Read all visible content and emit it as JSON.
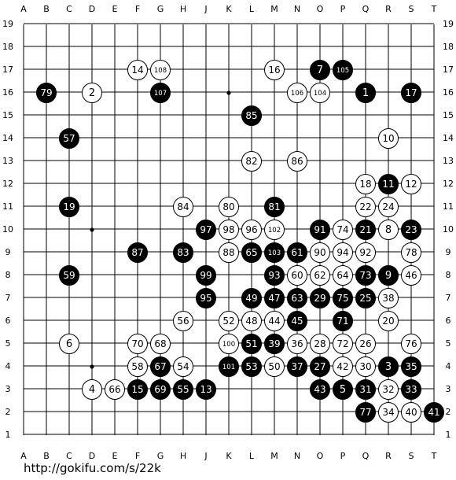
{
  "board": {
    "size": 19,
    "col_labels": [
      "A",
      "B",
      "C",
      "D",
      "E",
      "F",
      "G",
      "H",
      "J",
      "K",
      "L",
      "M",
      "N",
      "O",
      "P",
      "Q",
      "R",
      "S",
      "T"
    ],
    "row_labels": [
      "19",
      "18",
      "17",
      "16",
      "15",
      "14",
      "13",
      "12",
      "11",
      "10",
      "9",
      "8",
      "7",
      "6",
      "5",
      "4",
      "3",
      "2",
      "1"
    ],
    "hoshi": [
      "D4",
      "K4",
      "Q4",
      "D10",
      "K10",
      "Q10",
      "D16",
      "K16",
      "Q16"
    ],
    "url": "http://gokifu.com/s/22k",
    "stones": [
      {
        "pos": "Q16",
        "color": "black",
        "num": "1"
      },
      {
        "pos": "D16",
        "color": "white",
        "num": "2"
      },
      {
        "pos": "R4",
        "color": "black",
        "num": "3"
      },
      {
        "pos": "D3",
        "color": "white",
        "num": "4"
      },
      {
        "pos": "P3",
        "color": "black",
        "num": "5"
      },
      {
        "pos": "C5",
        "color": "white",
        "num": "6"
      },
      {
        "pos": "O17",
        "color": "black",
        "num": "7"
      },
      {
        "pos": "R10",
        "color": "white",
        "num": "8"
      },
      {
        "pos": "R8",
        "color": "black",
        "num": "9"
      },
      {
        "pos": "R14",
        "color": "white",
        "num": "10"
      },
      {
        "pos": "R12",
        "color": "black",
        "num": "11"
      },
      {
        "pos": "S12",
        "color": "white",
        "num": "12"
      },
      {
        "pos": "J3",
        "color": "black",
        "num": "13"
      },
      {
        "pos": "F17",
        "color": "white",
        "num": "14"
      },
      {
        "pos": "F3",
        "color": "black",
        "num": "15"
      },
      {
        "pos": "M17",
        "color": "white",
        "num": "16"
      },
      {
        "pos": "S16",
        "color": "black",
        "num": "17"
      },
      {
        "pos": "Q12",
        "color": "white",
        "num": "18"
      },
      {
        "pos": "C11",
        "color": "black",
        "num": "19"
      },
      {
        "pos": "R6",
        "color": "white",
        "num": "20"
      },
      {
        "pos": "Q10",
        "color": "black",
        "num": "21"
      },
      {
        "pos": "Q11",
        "color": "white",
        "num": "22"
      },
      {
        "pos": "S10",
        "color": "black",
        "num": "23"
      },
      {
        "pos": "R11",
        "color": "white",
        "num": "24"
      },
      {
        "pos": "Q7",
        "color": "black",
        "num": "25"
      },
      {
        "pos": "Q5",
        "color": "white",
        "num": "26"
      },
      {
        "pos": "O4",
        "color": "black",
        "num": "27"
      },
      {
        "pos": "O5",
        "color": "white",
        "num": "28"
      },
      {
        "pos": "O7",
        "color": "black",
        "num": "29"
      },
      {
        "pos": "Q4",
        "color": "white",
        "num": "30"
      },
      {
        "pos": "Q3",
        "color": "black",
        "num": "31"
      },
      {
        "pos": "R3",
        "color": "white",
        "num": "32"
      },
      {
        "pos": "S3",
        "color": "black",
        "num": "33"
      },
      {
        "pos": "R2",
        "color": "white",
        "num": "34"
      },
      {
        "pos": "S4",
        "color": "black",
        "num": "35"
      },
      {
        "pos": "N5",
        "color": "white",
        "num": "36"
      },
      {
        "pos": "N4",
        "color": "black",
        "num": "37"
      },
      {
        "pos": "R7",
        "color": "white",
        "num": "38"
      },
      {
        "pos": "M5",
        "color": "black",
        "num": "39"
      },
      {
        "pos": "S2",
        "color": "white",
        "num": "40"
      },
      {
        "pos": "T2",
        "color": "black",
        "num": "41"
      },
      {
        "pos": "P4",
        "color": "white",
        "num": "42"
      },
      {
        "pos": "O3",
        "color": "black",
        "num": "43"
      },
      {
        "pos": "M6",
        "color": "white",
        "num": "44"
      },
      {
        "pos": "N6",
        "color": "black",
        "num": "45"
      },
      {
        "pos": "S8",
        "color": "white",
        "num": "46"
      },
      {
        "pos": "M7",
        "color": "black",
        "num": "47"
      },
      {
        "pos": "L6",
        "color": "white",
        "num": "48"
      },
      {
        "pos": "L7",
        "color": "black",
        "num": "49"
      },
      {
        "pos": "M4",
        "color": "white",
        "num": "50"
      },
      {
        "pos": "L5",
        "color": "black",
        "num": "51"
      },
      {
        "pos": "K6",
        "color": "white",
        "num": "52"
      },
      {
        "pos": "L4",
        "color": "black",
        "num": "53"
      },
      {
        "pos": "H4",
        "color": "white",
        "num": "54"
      },
      {
        "pos": "H3",
        "color": "black",
        "num": "55"
      },
      {
        "pos": "H6",
        "color": "white",
        "num": "56"
      },
      {
        "pos": "C14",
        "color": "black",
        "num": "57"
      },
      {
        "pos": "F4",
        "color": "white",
        "num": "58"
      },
      {
        "pos": "C8",
        "color": "black",
        "num": "59"
      },
      {
        "pos": "N8",
        "color": "white",
        "num": "60"
      },
      {
        "pos": "N9",
        "color": "black",
        "num": "61"
      },
      {
        "pos": "O8",
        "color": "white",
        "num": "62"
      },
      {
        "pos": "N7",
        "color": "black",
        "num": "63"
      },
      {
        "pos": "P8",
        "color": "white",
        "num": "64"
      },
      {
        "pos": "L9",
        "color": "black",
        "num": "65"
      },
      {
        "pos": "E3",
        "color": "white",
        "num": "66"
      },
      {
        "pos": "G4",
        "color": "black",
        "num": "67"
      },
      {
        "pos": "G5",
        "color": "white",
        "num": "68"
      },
      {
        "pos": "G3",
        "color": "black",
        "num": "69"
      },
      {
        "pos": "F5",
        "color": "white",
        "num": "70"
      },
      {
        "pos": "P6",
        "color": "black",
        "num": "71"
      },
      {
        "pos": "P5",
        "color": "white",
        "num": "72"
      },
      {
        "pos": "Q8",
        "color": "black",
        "num": "73"
      },
      {
        "pos": "P10",
        "color": "white",
        "num": "74"
      },
      {
        "pos": "P7",
        "color": "black",
        "num": "75"
      },
      {
        "pos": "S5",
        "color": "white",
        "num": "76"
      },
      {
        "pos": "Q2",
        "color": "black",
        "num": "77"
      },
      {
        "pos": "S9",
        "color": "white",
        "num": "78"
      },
      {
        "pos": "B16",
        "color": "black",
        "num": "79"
      },
      {
        "pos": "K11",
        "color": "white",
        "num": "80"
      },
      {
        "pos": "M11",
        "color": "black",
        "num": "81"
      },
      {
        "pos": "L13",
        "color": "white",
        "num": "82"
      },
      {
        "pos": "H9",
        "color": "black",
        "num": "83"
      },
      {
        "pos": "H11",
        "color": "white",
        "num": "84"
      },
      {
        "pos": "L15",
        "color": "black",
        "num": "85"
      },
      {
        "pos": "N13",
        "color": "white",
        "num": "86"
      },
      {
        "pos": "F9",
        "color": "black",
        "num": "87"
      },
      {
        "pos": "K9",
        "color": "white",
        "num": "88"
      },
      {
        "pos": "O10",
        "color": "black",
        "num": "91"
      },
      {
        "pos": "O9",
        "color": "white",
        "num": "90"
      },
      {
        "pos": "Q9",
        "color": "white",
        "num": "92"
      },
      {
        "pos": "M8",
        "color": "black",
        "num": "93"
      },
      {
        "pos": "P9",
        "color": "white",
        "num": "94"
      },
      {
        "pos": "J7",
        "color": "black",
        "num": "95"
      },
      {
        "pos": "L10",
        "color": "white",
        "num": "96"
      },
      {
        "pos": "J10",
        "color": "black",
        "num": "97"
      },
      {
        "pos": "K10",
        "color": "white",
        "num": "98"
      },
      {
        "pos": "J8",
        "color": "black",
        "num": "99"
      },
      {
        "pos": "K5",
        "color": "white",
        "num": "100"
      },
      {
        "pos": "K4",
        "color": "black",
        "num": "101"
      },
      {
        "pos": "M10",
        "color": "white",
        "num": "102"
      },
      {
        "pos": "M9",
        "color": "black",
        "num": "103"
      },
      {
        "pos": "O16",
        "color": "white",
        "num": "104"
      },
      {
        "pos": "P17",
        "color": "black",
        "num": "105"
      },
      {
        "pos": "N16",
        "color": "white",
        "num": "106"
      },
      {
        "pos": "G16",
        "color": "black",
        "num": "107"
      },
      {
        "pos": "G17",
        "color": "white",
        "num": "108"
      }
    ]
  }
}
